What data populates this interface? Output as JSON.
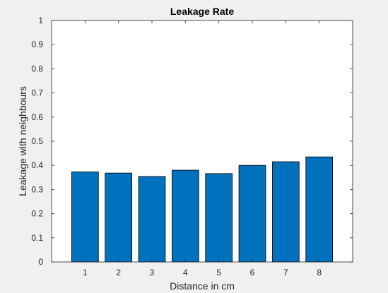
{
  "chart_data": {
    "type": "bar",
    "title": "Leakage Rate",
    "xlabel": "Distance in cm",
    "ylabel": "Leakage with neighbours",
    "categories": [
      "1",
      "2",
      "3",
      "4",
      "5",
      "6",
      "7",
      "8"
    ],
    "values": [
      0.373,
      0.368,
      0.354,
      0.38,
      0.366,
      0.4,
      0.415,
      0.435
    ],
    "ylim": [
      0,
      1
    ],
    "yticks": [
      "0",
      "0.1",
      "0.2",
      "0.3",
      "0.4",
      "0.5",
      "0.6",
      "0.7",
      "0.8",
      "0.9",
      "1"
    ],
    "grid": false,
    "colors": {
      "bar": "#0072BD",
      "bar_edge": "#000000",
      "plot_bg": "#FFFFFF",
      "figure_bg": "#F0F0F0"
    }
  }
}
